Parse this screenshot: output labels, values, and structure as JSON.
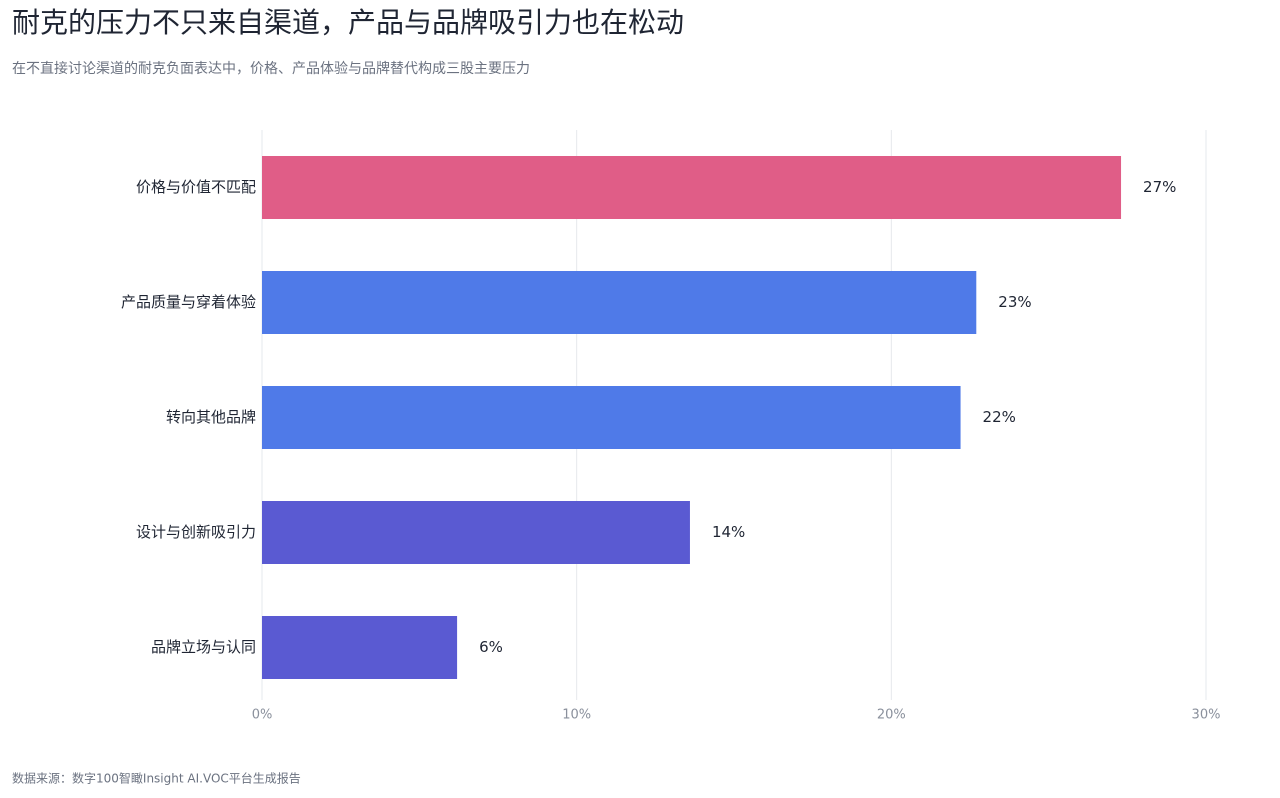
{
  "chart_data": {
    "type": "bar",
    "orientation": "horizontal",
    "title": "耐克的压力不只来自渠道，产品与品牌吸引力也在松动",
    "subtitle": "在不直接讨论渠道的耐克负面表达中，价格、产品体验与品牌替代构成三股主要压力",
    "categories": [
      "价格与价值不匹配",
      "产品质量与穿着体验",
      "转向其他品牌",
      "设计与创新吸引力",
      "品牌立场与认同"
    ],
    "values": [
      27.3,
      22.7,
      22.2,
      13.6,
      6.2
    ],
    "value_labels": [
      "27%",
      "23%",
      "22%",
      "14%",
      "6%"
    ],
    "colors": [
      "#e05d87",
      "#4f7ae8",
      "#4f7ae8",
      "#5a5ad2",
      "#5a5ad2"
    ],
    "xlim": [
      0,
      30
    ],
    "xticks": [
      {
        "value": 0,
        "label": "0%"
      },
      {
        "value": 10,
        "label": "10%"
      },
      {
        "value": 20,
        "label": "20%"
      },
      {
        "value": 30,
        "label": "30%"
      }
    ],
    "grid": true,
    "source": "数据来源：数字100智瞰Insight AI.VOC平台生成报告"
  }
}
